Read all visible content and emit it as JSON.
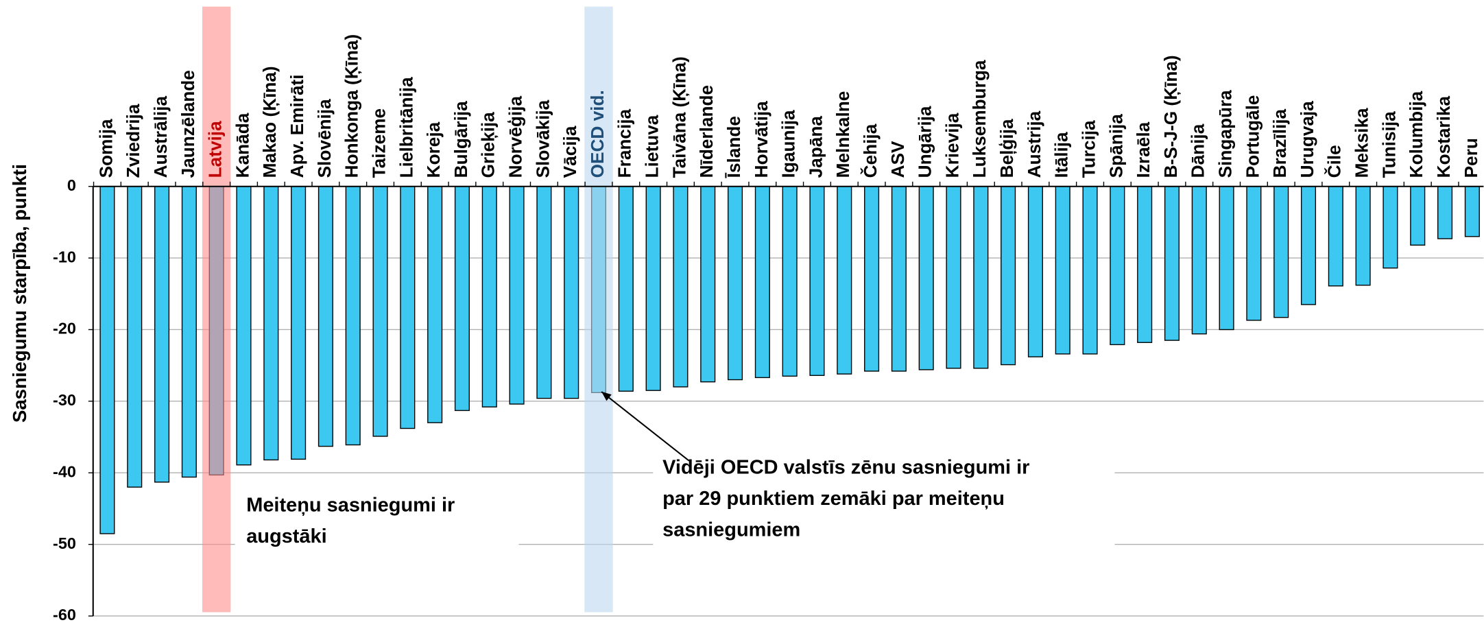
{
  "chart_data": {
    "type": "bar",
    "y_label": "Sasniegumu starpība, punkti",
    "categories": [
      "Somija",
      "Zviedrija",
      "Austrālija",
      "Jaunzēlande",
      "Latvija",
      "Kanāda",
      "Makao (Ķīna)",
      "Apv. Emirāti",
      "Slovēnija",
      "Honkonga (Ķīna)",
      "Taizeme",
      "Lielbritānija",
      "Koreja",
      "Bulgārija",
      "Grieķija",
      "Norvēģija",
      "Slovākija",
      "Vācija",
      "OECD vid.",
      "Francija",
      "Lietuva",
      "Taivāna (Ķīna)",
      "Nīderlande",
      "Īslande",
      "Horvātija",
      "Igaunija",
      "Japāna",
      "Melnkalne",
      "Čehija",
      "ASV",
      "Ungārija",
      "Krievija",
      "Luksemburga",
      "Beļģija",
      "Austrija",
      "Itālija",
      "Turcija",
      "Spānija",
      "Izraēla",
      "B-S-J-G (Ķīna)",
      "Dānija",
      "Singapūra",
      "Portugāle",
      "Brazīlija",
      "Urugvaja",
      "Čile",
      "Meksika",
      "Tunisija",
      "Kolumbija",
      "Kostarika",
      "Peru"
    ],
    "values": [
      -48.5,
      -42,
      -41.3,
      -40.6,
      -40.3,
      -38.9,
      -38.2,
      -38.1,
      -36.3,
      -36.1,
      -34.9,
      -33.8,
      -33,
      -31.3,
      -30.8,
      -30.4,
      -29.6,
      -29.6,
      -28.8,
      -28.6,
      -28.5,
      -28,
      -27.3,
      -27,
      -26.7,
      -26.5,
      -26.4,
      -26.2,
      -25.8,
      -25.8,
      -25.6,
      -25.4,
      -25.4,
      -24.9,
      -23.8,
      -23.4,
      -23.4,
      -22.1,
      -21.8,
      -21.5,
      -20.6,
      -20,
      -18.7,
      -18.3,
      -16.5,
      -13.9,
      -13.8,
      -11.4,
      -8.2,
      -7.3,
      -7
    ],
    "color": "#3cc8f0",
    "ylim": [
      -60,
      0
    ],
    "yticks": [
      0,
      -10,
      -20,
      -30,
      -40,
      -50,
      -60
    ],
    "grid": true,
    "highlights": [
      {
        "index": 4,
        "color": "#ff8c8c",
        "label_color": "#c00000"
      },
      {
        "index": 18,
        "color": "#bdd7ee",
        "label_color": "#1f4e79"
      }
    ],
    "annotations": [
      {
        "lines": [
          "Meiteņu sasniegumi ir",
          "augstāki"
        ]
      },
      {
        "lines": [
          "Vidēji OECD valstīs zēnu sasniegumi ir",
          "par 29 punktiem zemāki par meiteņu",
          "sasniegumiem"
        ]
      }
    ]
  }
}
